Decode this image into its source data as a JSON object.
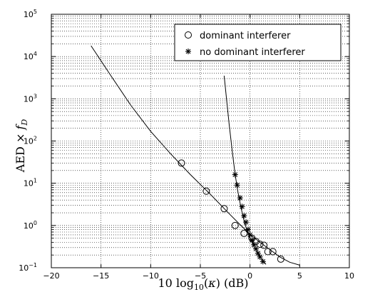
{
  "chart_data": {
    "type": "scatter",
    "xlabel": "10 log10(κ) (dB)",
    "ylabel": "AED × f_D",
    "xlim": [
      -20,
      10
    ],
    "ylim": [
      0.1,
      100000
    ],
    "yscale": "log",
    "grid": true,
    "legend_position": "top-right",
    "x_ticks": [
      -20,
      -15,
      -10,
      -5,
      0,
      5,
      10
    ],
    "x_tick_labels": [
      "−20",
      "−15",
      "−10",
      "−5",
      "0",
      "5",
      "10"
    ],
    "y_ticks": [
      0.1,
      1,
      10,
      100,
      1000,
      10000,
      100000
    ],
    "y_tick_exponents": [
      "−1",
      "0",
      "1",
      "2",
      "3",
      "4",
      "5"
    ],
    "y_tick_base": "10",
    "series": [
      {
        "name": "dominant interferer",
        "marker": "circle",
        "points": [
          {
            "x": -6.9,
            "y": 30
          },
          {
            "x": -4.4,
            "y": 6.5
          },
          {
            "x": -2.6,
            "y": 2.5
          },
          {
            "x": -1.5,
            "y": 1.0
          },
          {
            "x": -0.6,
            "y": 0.65
          },
          {
            "x": 0.2,
            "y": 0.5
          },
          {
            "x": 0.6,
            "y": 0.42
          },
          {
            "x": 1.0,
            "y": 0.36
          },
          {
            "x": 1.4,
            "y": 0.34
          },
          {
            "x": 1.8,
            "y": 0.24
          },
          {
            "x": 2.3,
            "y": 0.24
          },
          {
            "x": 3.1,
            "y": 0.16
          }
        ],
        "fit_curve": [
          {
            "x": -16.0,
            "y": 18000
          },
          {
            "x": -14.0,
            "y": 3500
          },
          {
            "x": -12.0,
            "y": 700
          },
          {
            "x": -10.0,
            "y": 170
          },
          {
            "x": -8.0,
            "y": 50
          },
          {
            "x": -6.0,
            "y": 16
          },
          {
            "x": -4.0,
            "y": 5.5
          },
          {
            "x": -2.0,
            "y": 1.8
          },
          {
            "x": -1.0,
            "y": 1.05
          },
          {
            "x": 0.0,
            "y": 0.62
          },
          {
            "x": 1.0,
            "y": 0.4
          },
          {
            "x": 2.0,
            "y": 0.27
          },
          {
            "x": 3.0,
            "y": 0.18
          },
          {
            "x": 4.0,
            "y": 0.135
          },
          {
            "x": 5.0,
            "y": 0.115
          }
        ]
      },
      {
        "name": "no dominant interferer",
        "marker": "asterisk",
        "points": [
          {
            "x": -1.5,
            "y": 16
          },
          {
            "x": -1.3,
            "y": 9
          },
          {
            "x": -1.0,
            "y": 4.5
          },
          {
            "x": -0.8,
            "y": 2.8
          },
          {
            "x": -0.6,
            "y": 1.7
          },
          {
            "x": -0.4,
            "y": 1.2
          },
          {
            "x": -0.2,
            "y": 0.8
          },
          {
            "x": 0.0,
            "y": 0.6
          },
          {
            "x": 0.2,
            "y": 0.45
          },
          {
            "x": 0.4,
            "y": 0.35
          },
          {
            "x": 0.6,
            "y": 0.28
          },
          {
            "x": 0.8,
            "y": 0.22
          },
          {
            "x": 1.0,
            "y": 0.18
          },
          {
            "x": 1.3,
            "y": 0.14
          }
        ],
        "fit_curve": [
          {
            "x": -2.6,
            "y": 3500
          },
          {
            "x": -2.4,
            "y": 1200
          },
          {
            "x": -2.1,
            "y": 250
          },
          {
            "x": -1.8,
            "y": 60
          },
          {
            "x": -1.5,
            "y": 16
          },
          {
            "x": -1.2,
            "y": 6
          },
          {
            "x": -0.9,
            "y": 2.6
          },
          {
            "x": -0.6,
            "y": 1.3
          },
          {
            "x": -0.3,
            "y": 0.75
          },
          {
            "x": 0.0,
            "y": 0.5
          },
          {
            "x": 0.3,
            "y": 0.35
          },
          {
            "x": 0.6,
            "y": 0.26
          },
          {
            "x": 0.9,
            "y": 0.2
          },
          {
            "x": 1.2,
            "y": 0.16
          },
          {
            "x": 1.6,
            "y": 0.12
          }
        ]
      }
    ]
  }
}
